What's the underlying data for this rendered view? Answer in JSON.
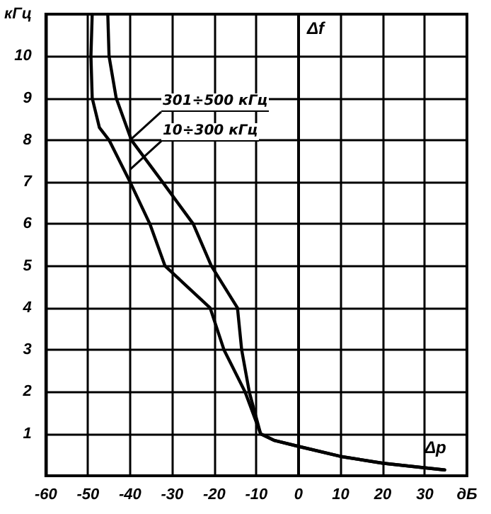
{
  "chart_data": {
    "type": "line",
    "xlabel": "Δp",
    "ylabel": "Δf",
    "xlim": [
      -60,
      40
    ],
    "ylim": [
      0,
      11
    ],
    "xticks": [
      -60,
      -50,
      -40,
      -30,
      -20,
      -10,
      0,
      10,
      20,
      30,
      {
        "value": 40,
        "label": "дБ"
      }
    ],
    "yticks": [
      {
        "value": 0,
        "label": null
      },
      1,
      2,
      3,
      4,
      5,
      6,
      7,
      8,
      9,
      10,
      {
        "value": 11,
        "label": "кГц"
      }
    ],
    "grid": true,
    "marker": "none",
    "line_style": "solid",
    "series": [
      {
        "color": "#000000",
        "x": [
          -45.3,
          -45,
          -43.3,
          -39.7,
          -32.3,
          -25,
          -20.7,
          -14.5,
          -13.5,
          -11.7,
          -9,
          -5.7,
          0,
          10,
          20,
          30,
          34.7
        ],
        "values": [
          11,
          10,
          9,
          8,
          7,
          6,
          5,
          4,
          3,
          2,
          1,
          0.84,
          0.7,
          0.46,
          0.3,
          0.19,
          0.14
        ]
      },
      {
        "color": "#000000",
        "x": [
          -49,
          -49.3,
          -49,
          -47.3,
          -45,
          -40,
          -35.3,
          -31.7,
          -21,
          -17.7,
          -12.7,
          -9,
          -5.7,
          0,
          10,
          20,
          30,
          34.7
        ],
        "values": [
          11,
          10,
          9,
          8.3,
          8,
          7,
          6,
          5,
          4,
          3,
          2,
          1,
          0.84,
          0.7,
          0.46,
          0.3,
          0.19,
          0.14
        ]
      }
    ],
    "annotations": [
      {
        "text": "301÷500 кГц",
        "x": -40,
        "y": 8
      },
      {
        "text": "10÷300 кГц",
        "x": -40,
        "y": 7.3
      }
    ]
  }
}
